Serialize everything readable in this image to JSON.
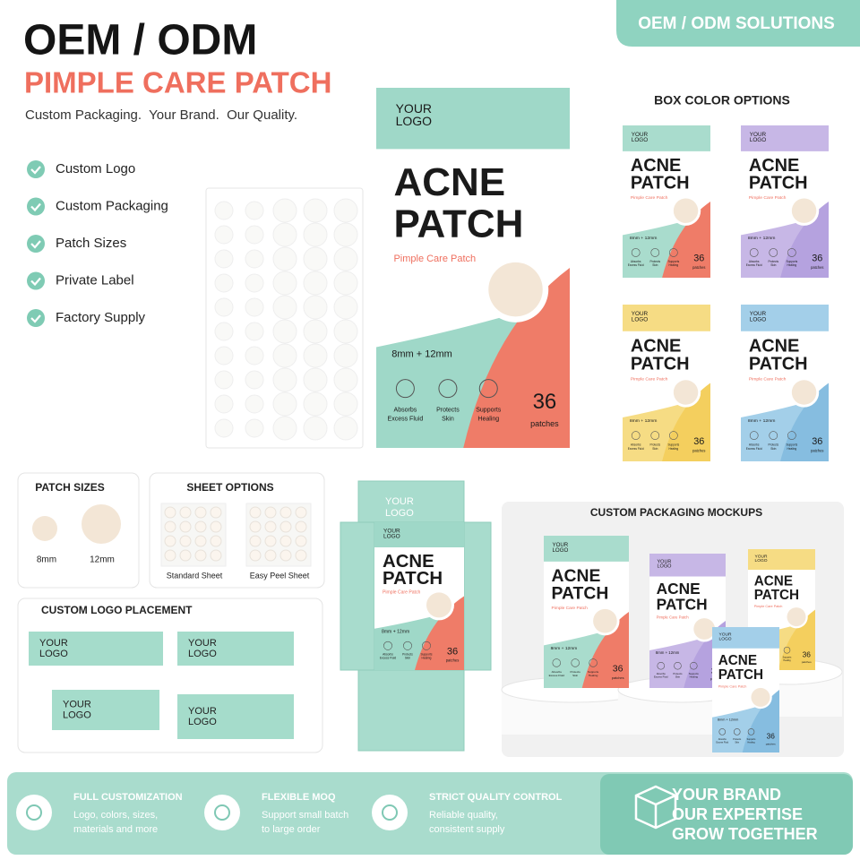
{
  "badge": "OEM / ODM SOLUTIONS",
  "header": {
    "title": "OEM / ODM",
    "subtitle": "PIMPLE CARE PATCH",
    "tagline": "Custom Packaging.  Your Brand.  Our Quality."
  },
  "features": [
    "Custom Logo",
    "Custom Packaging",
    "Patch Sizes",
    "Private Label",
    "Factory Supply"
  ],
  "product": {
    "logo": [
      "YOUR",
      "LOGO"
    ],
    "title": [
      "ACNE",
      "PATCH"
    ],
    "subtitle": "Pimple Care Patch",
    "sizes": "8mm + 12mm",
    "benefits": [
      [
        "Absorbs",
        "Excess Fluid"
      ],
      [
        "Protects",
        "Skin"
      ],
      [
        "Supports",
        "Healing"
      ]
    ],
    "count": 36,
    "count_unit": "patches"
  },
  "box_colors": {
    "title": "BOX COLOR OPTIONS"
  },
  "patch_sizes": {
    "title": "PATCH SIZES",
    "sizes": [
      "8mm",
      "12mm"
    ]
  },
  "sheet_options": {
    "title": "SHEET OPTIONS",
    "options": [
      "Standard Sheet",
      "Easy Peel Sheet"
    ]
  },
  "logo_placement": {
    "title": "CUSTOM LOGO PLACEMENT"
  },
  "mockups": {
    "title": "CUSTOM PACKAGING MOCKUPS"
  },
  "footer": {
    "items": [
      {
        "title": "FULL CUSTOMIZATION",
        "text": [
          "Logo, colors, sizes,",
          "materials and more"
        ]
      },
      {
        "title": "FLEXIBLE MOQ",
        "text": [
          "Support small batch",
          "to large order"
        ]
      },
      {
        "title": "STRICT QUALITY CONTROL",
        "text": [
          "Reliable quality,",
          "consistent supply"
        ]
      }
    ],
    "slogan": [
      "YOUR BRAND",
      "OUR EXPERTISE",
      "GROW TOGETHER"
    ]
  }
}
